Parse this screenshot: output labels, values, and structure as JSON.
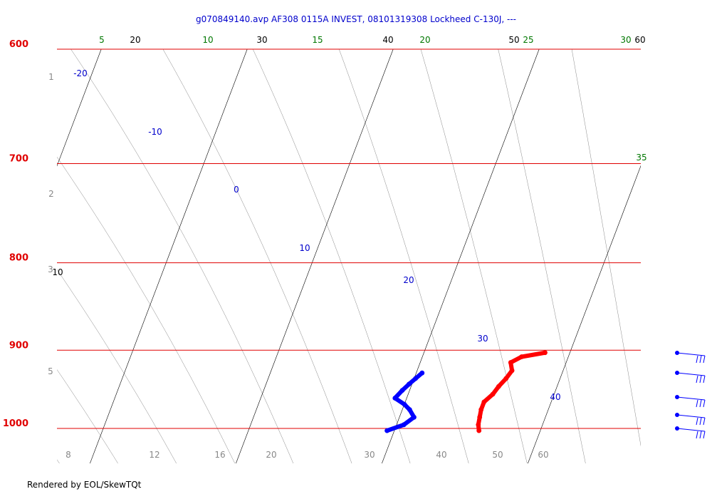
{
  "title": "g070849140.avp  AF308 0115A INVEST, 08101319308 Lockheed C-130J, ---",
  "credit": "Rendered by EOL/SkewTQt",
  "chart_data": {
    "type": "skew-t",
    "pressure_axis": {
      "labels": [
        "600",
        "700",
        "800",
        "900",
        "1000"
      ],
      "values": [
        600,
        700,
        800,
        900,
        1000
      ],
      "color": "#e00000"
    },
    "isotherm_labels": [
      "20",
      "30",
      "40",
      "50",
      "60",
      "10"
    ],
    "mixing_ratio_labels": [
      "5",
      "10",
      "15",
      "20",
      "25",
      "30",
      "35"
    ],
    "dry_adiabat_labels": [
      "-20",
      "-10",
      "0",
      "10",
      "20",
      "30",
      "40"
    ],
    "height_labels": [
      "1",
      "2",
      "3",
      "5"
    ],
    "bottom_labels": [
      "8",
      "12",
      "16",
      "20",
      "30",
      "40",
      "50",
      "60"
    ],
    "temperature_trace": {
      "color": "#ff0000",
      "pressure": [
        1003,
        995,
        985,
        975,
        965,
        955,
        945,
        935,
        925,
        915,
        908,
        903
      ],
      "temperature": [
        25.8,
        25.6,
        25.5,
        25.4,
        25.4,
        25.8,
        26.0,
        26.3,
        26.5,
        26.2,
        26.8,
        28.3
      ]
    },
    "dewpoint_trace": {
      "color": "#0000ff",
      "pressure": [
        1003,
        995,
        985,
        975,
        968,
        960,
        950,
        942,
        935,
        928
      ],
      "dewpoint": [
        19.5,
        20.5,
        21.0,
        20.5,
        20.0,
        19.2,
        19.5,
        19.8,
        20.1,
        20.4
      ]
    },
    "wind_barbs": {
      "color": "#0000ff",
      "count": 5
    },
    "colors": {
      "isobar": "#e00000",
      "isotherm": "#000000",
      "mixing_ratio": "#007700",
      "dry_adiabat": "#0000cc",
      "moist_adiabat": "#888888"
    }
  }
}
